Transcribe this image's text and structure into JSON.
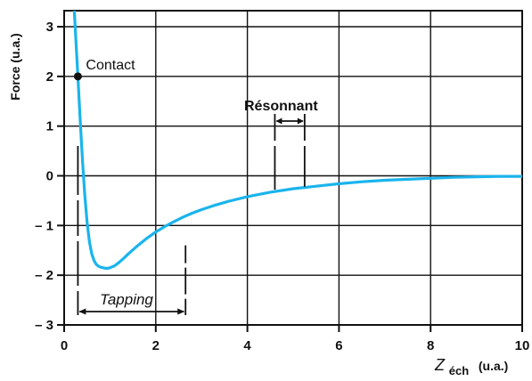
{
  "chart_data": {
    "type": "line",
    "title": "",
    "ylabel": "Force (u.a.)",
    "xlabel_main": "Z",
    "xlabel_sub": "éch",
    "xlabel_unit": "(u.a.)",
    "xlim": [
      0,
      10
    ],
    "ylim": [
      -3,
      3
    ],
    "x_ticks": [
      0,
      2,
      4,
      6,
      8,
      10
    ],
    "x_tick_labels": [
      "0",
      "2",
      "4",
      "6",
      "8",
      "10"
    ],
    "y_ticks": [
      3,
      2,
      1,
      0,
      -1,
      -2,
      -3
    ],
    "y_tick_labels": [
      "3",
      "2",
      "1",
      "0",
      "– 1",
      "– 2",
      "– 3"
    ],
    "grid": true,
    "series": [
      {
        "color": "#1ab4ec",
        "x": [
          0.22,
          0.25,
          0.3,
          0.35,
          0.4,
          0.45,
          0.5,
          0.55,
          0.6,
          0.65,
          0.7,
          0.75,
          0.8,
          0.85,
          0.9,
          0.95,
          1.0,
          1.1,
          1.2,
          1.3,
          1.4,
          1.5,
          1.6,
          1.8,
          2.0,
          2.2,
          2.4,
          2.6,
          2.8,
          3.0,
          3.3,
          3.6,
          4.0,
          4.5,
          5.0,
          5.5,
          6.0,
          6.5,
          7.0,
          7.5,
          8.0,
          8.5,
          9.0,
          9.5,
          10.0
        ],
        "y": [
          3.35,
          2.85,
          2.0,
          1.12,
          0.3,
          -0.38,
          -0.93,
          -1.32,
          -1.56,
          -1.7,
          -1.78,
          -1.82,
          -1.84,
          -1.85,
          -1.86,
          -1.86,
          -1.85,
          -1.81,
          -1.74,
          -1.66,
          -1.57,
          -1.49,
          -1.41,
          -1.26,
          -1.13,
          -1.02,
          -0.92,
          -0.83,
          -0.75,
          -0.68,
          -0.59,
          -0.51,
          -0.42,
          -0.33,
          -0.26,
          -0.21,
          -0.16,
          -0.12,
          -0.09,
          -0.07,
          -0.05,
          -0.03,
          -0.02,
          -0.01,
          -0.01
        ]
      }
    ],
    "annotations": {
      "contact": {
        "label": "Contact",
        "x": 0.3,
        "y": 2.0
      },
      "resonnant": {
        "label": "Résonnant",
        "x_start": 4.6,
        "x_end": 5.25
      },
      "tapping": {
        "label": "Tapping",
        "x_start": 0.3,
        "x_end": 2.65
      }
    }
  }
}
